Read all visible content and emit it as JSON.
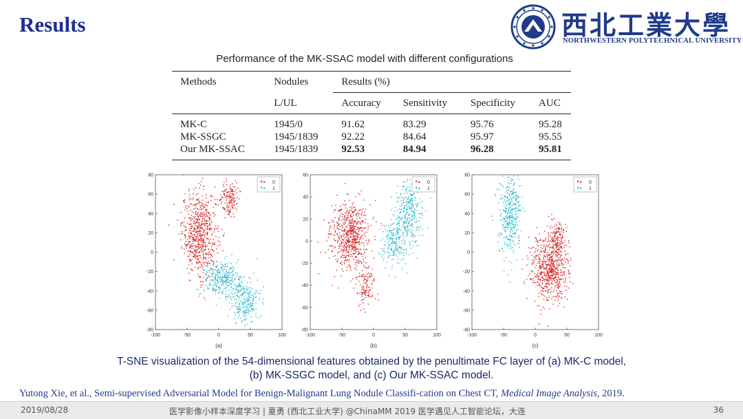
{
  "slide": {
    "title": "Results"
  },
  "logo": {
    "chinese": "西北工業大學",
    "english": "NORTHWESTERN POLYTECHNICAL UNIVERSITY"
  },
  "table": {
    "title": "Performance of the MK-SSAC model with different configurations",
    "header": {
      "methods": "Methods",
      "nodules": "Nodules",
      "results": "Results (%)",
      "lul": "L/UL",
      "accuracy": "Accuracy",
      "sensitivity": "Sensitivity",
      "specificity": "Specificity",
      "auc": "AUC"
    },
    "rows": [
      {
        "method": "MK-C",
        "nodules": "1945/0",
        "accuracy": "91.62",
        "sensitivity": "83.29",
        "specificity": "95.76",
        "auc": "95.28"
      },
      {
        "method": "MK-SSGC",
        "nodules": "1945/1839",
        "accuracy": "92.22",
        "sensitivity": "84.64",
        "specificity": "95.97",
        "auc": "95.55"
      },
      {
        "method": "Our MK-SSAC",
        "nodules": "1945/1839",
        "accuracy": "92.53",
        "sensitivity": "84.94",
        "specificity": "96.28",
        "auc": "95.81"
      }
    ]
  },
  "chart_data": [
    {
      "type": "scatter",
      "label": "(a)",
      "title": "",
      "xlim": [
        -100,
        100
      ],
      "ylim": [
        -80,
        80
      ],
      "xticks": [
        -100,
        -50,
        0,
        50,
        100
      ],
      "yticks": [
        80,
        60,
        40,
        20,
        0,
        -20,
        -40,
        -60,
        -80
      ],
      "legend": [
        "0",
        "1"
      ],
      "legend_position": "top-right",
      "series": [
        {
          "name": "0",
          "color": "#d62728",
          "clusters": [
            {
              "cx": -30,
              "cy": 20,
              "sx": 14,
              "sy": 22,
              "n": 700
            },
            {
              "cx": 18,
              "cy": 55,
              "sx": 7,
              "sy": 9,
              "n": 150
            }
          ]
        },
        {
          "name": "1",
          "color": "#2ab7c9",
          "clusters": [
            {
              "cx": 5,
              "cy": -28,
              "sx": 14,
              "sy": 9,
              "n": 300
            },
            {
              "cx": 42,
              "cy": -50,
              "sx": 12,
              "sy": 12,
              "n": 250
            }
          ]
        }
      ]
    },
    {
      "type": "scatter",
      "label": "(b)",
      "title": "",
      "xlim": [
        -100,
        100
      ],
      "ylim": [
        -80,
        60
      ],
      "xticks": [
        -100,
        -50,
        0,
        50,
        100
      ],
      "yticks": [
        60,
        40,
        20,
        0,
        -20,
        -40,
        -60,
        -80
      ],
      "legend": [
        "0",
        "1"
      ],
      "legend_position": "top-right",
      "series": [
        {
          "name": "0",
          "color": "#d62728",
          "clusters": [
            {
              "cx": -38,
              "cy": 5,
              "sx": 15,
              "sy": 15,
              "n": 650
            },
            {
              "cx": -12,
              "cy": -40,
              "sx": 7,
              "sy": 9,
              "n": 120
            }
          ]
        },
        {
          "name": "1",
          "color": "#2ab7c9",
          "clusters": [
            {
              "cx": 55,
              "cy": 25,
              "sx": 12,
              "sy": 14,
              "n": 320
            },
            {
              "cx": 32,
              "cy": -2,
              "sx": 10,
              "sy": 10,
              "n": 200
            }
          ]
        }
      ]
    },
    {
      "type": "scatter",
      "label": "(c)",
      "title": "",
      "xlim": [
        -100,
        100
      ],
      "ylim": [
        -80,
        80
      ],
      "xticks": [
        -100,
        -50,
        0,
        50,
        100
      ],
      "yticks": [
        80,
        60,
        40,
        20,
        0,
        -20,
        -40,
        -60,
        -80
      ],
      "legend": [
        "0",
        "1"
      ],
      "legend_position": "top-right",
      "series": [
        {
          "name": "0",
          "color": "#d62728",
          "clusters": [
            {
              "cx": 22,
              "cy": -18,
              "sx": 15,
              "sy": 17,
              "n": 650
            },
            {
              "cx": 35,
              "cy": 15,
              "sx": 7,
              "sy": 10,
              "n": 150
            }
          ]
        },
        {
          "name": "1",
          "color": "#2ab7c9",
          "clusters": [
            {
              "cx": -40,
              "cy": 40,
              "sx": 9,
              "sy": 24,
              "n": 380
            }
          ]
        }
      ]
    }
  ],
  "caption": {
    "line1": "T-SNE visualization of the 54-dimensional features obtained by the penultimate FC layer of (a) MK-C model,",
    "line2": "(b) MK-SSGC model, and (c) Our MK-SSAC model."
  },
  "citation": {
    "authors_title": "Yutong Xie, et al., Semi-supervised Adversarial Model for Benign-Malignant Lung Nodule Classifi-cation on Chest CT, ",
    "journal": "Medical Image Analysis",
    "year": ", 2019."
  },
  "footer": {
    "date": "2019/08/28",
    "text": "医学影像小样本深度学习 | 夏勇 (西北工业大学)  @ChinaMM 2019 医学遇见人工智能论坛，大连",
    "page": "36"
  },
  "colors": {
    "title": "#1f2f8f",
    "caption": "#1a2a6a",
    "class0": "#d62728",
    "class1": "#2ab7c9"
  }
}
